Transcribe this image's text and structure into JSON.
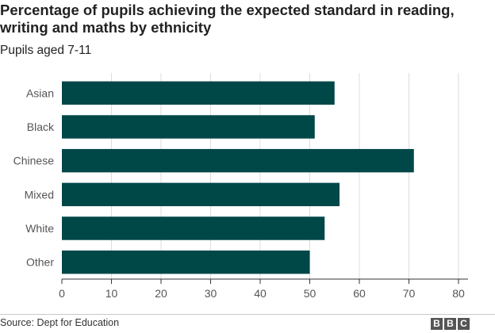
{
  "header": {
    "title": "Percentage of pupils achieving the expected standard in reading, writing and maths by ethnicity",
    "subtitle": "Pupils aged 7-11"
  },
  "footer": {
    "source": "Source: Dept for Education",
    "logo_letters": [
      "B",
      "B",
      "C"
    ]
  },
  "colors": {
    "bar": "#004748",
    "grid": "#dddddd",
    "axis": "#333333"
  },
  "chart_data": {
    "type": "bar",
    "orientation": "horizontal",
    "categories": [
      "Asian",
      "Black",
      "Chinese",
      "Mixed",
      "White",
      "Other"
    ],
    "values": [
      55,
      51,
      71,
      56,
      53,
      50
    ],
    "xlim": [
      0,
      80
    ],
    "xticks": [
      0,
      10,
      20,
      30,
      40,
      50,
      60,
      70,
      80
    ],
    "grid": true
  }
}
